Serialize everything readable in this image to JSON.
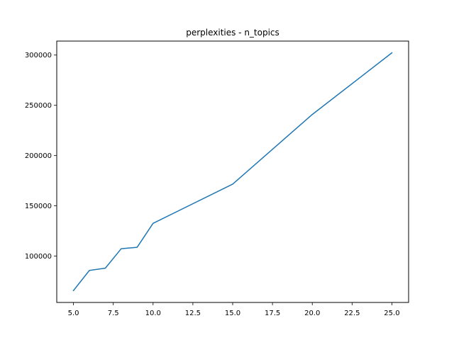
{
  "chart_data": {
    "type": "line",
    "title": "perplexities - n_topics",
    "xlabel": "",
    "ylabel": "",
    "xlim": [
      3.95,
      26.05
    ],
    "ylim": [
      53900,
      313900
    ],
    "x_ticks": [
      5.0,
      7.5,
      10.0,
      12.5,
      15.0,
      17.5,
      20.0,
      22.5,
      25.0
    ],
    "x_tick_labels": [
      "5.0",
      "7.5",
      "10.0",
      "12.5",
      "15.0",
      "17.5",
      "20.0",
      "22.5",
      "25.0"
    ],
    "y_ticks": [
      100000,
      150000,
      200000,
      250000,
      300000
    ],
    "y_tick_labels": [
      "100000",
      "150000",
      "200000",
      "250000",
      "300000"
    ],
    "grid": false,
    "series": [
      {
        "color": "#1f77b4",
        "x": [
          5,
          6,
          7,
          8,
          9,
          10,
          15,
          20,
          25
        ],
        "y": [
          65700,
          85800,
          88000,
          107400,
          108800,
          132600,
          171600,
          240900,
          302200
        ]
      }
    ]
  }
}
